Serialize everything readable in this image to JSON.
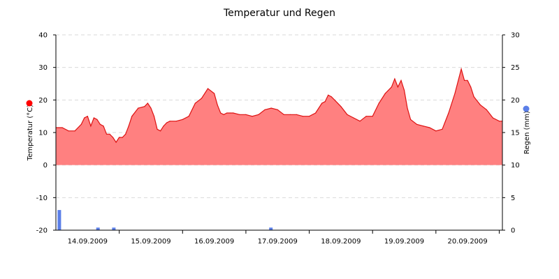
{
  "chart_data": {
    "type": "area",
    "title": "Temperatur und Regen",
    "y_left": {
      "label": "Temperatur (°C)",
      "min": -20,
      "max": 40,
      "ticks": [
        -20,
        -10,
        0,
        10,
        20,
        30,
        40
      ],
      "tick_labels": [
        "-20",
        "-10",
        "0",
        "10",
        "20",
        "30",
        "40"
      ]
    },
    "y_right": {
      "label": "Regen (mm)",
      "min": 0,
      "max": 30,
      "ticks": [
        0,
        5,
        10,
        15,
        20,
        25,
        30
      ],
      "tick_labels": [
        "0",
        "5",
        "10",
        "15",
        "20",
        "25",
        "30"
      ]
    },
    "x_range_days": [
      0,
      7.05
    ],
    "x_tick_labels": [
      "14.09.2009",
      "15.09.2009",
      "16.09.2009",
      "17.09.2009",
      "18.09.2009",
      "19.09.2009",
      "20.09.2009"
    ],
    "grid": true,
    "colors": {
      "temperature_fill": "#ff8080",
      "temperature_line": "#dd1111",
      "rain": "#5b7fe8",
      "marker_temperature": "#ff0000",
      "marker_rain": "#5b7fe8"
    },
    "series": [
      {
        "name": "Temperatur",
        "x_days": [
          0,
          0.1,
          0.2,
          0.3,
          0.4,
          0.45,
          0.5,
          0.55,
          0.6,
          0.65,
          0.7,
          0.75,
          0.8,
          0.85,
          0.9,
          0.95,
          1.0,
          1.05,
          1.1,
          1.15,
          1.2,
          1.3,
          1.4,
          1.45,
          1.5,
          1.55,
          1.6,
          1.65,
          1.7,
          1.75,
          1.8,
          1.9,
          2.0,
          2.1,
          2.2,
          2.3,
          2.4,
          2.5,
          2.55,
          2.6,
          2.65,
          2.7,
          2.75,
          2.8,
          2.9,
          3.0,
          3.1,
          3.2,
          3.3,
          3.4,
          3.5,
          3.6,
          3.7,
          3.8,
          3.9,
          4.0,
          4.1,
          4.2,
          4.25,
          4.3,
          4.35,
          4.4,
          4.5,
          4.6,
          4.7,
          4.8,
          4.9,
          5.0,
          5.1,
          5.2,
          5.3,
          5.35,
          5.4,
          5.45,
          5.5,
          5.55,
          5.6,
          5.7,
          5.8,
          5.9,
          6.0,
          6.1,
          6.2,
          6.3,
          6.4,
          6.45,
          6.5,
          6.55,
          6.6,
          6.7,
          6.8,
          6.9,
          7.0,
          7.05
        ],
        "values": [
          11.5,
          11.5,
          10.5,
          10.5,
          12.5,
          14.5,
          15.0,
          12.0,
          14.5,
          14.0,
          12.5,
          12.0,
          9.5,
          9.5,
          8.5,
          7.0,
          8.5,
          8.5,
          9.5,
          12.0,
          15.0,
          17.5,
          18.0,
          19.0,
          17.5,
          15.0,
          11.0,
          10.5,
          12.0,
          13.0,
          13.5,
          13.5,
          14.0,
          15.0,
          19.0,
          20.5,
          23.5,
          22.0,
          18.5,
          16.0,
          15.5,
          16.0,
          16.0,
          16.0,
          15.5,
          15.5,
          15.0,
          15.5,
          17.0,
          17.5,
          17.0,
          15.5,
          15.5,
          15.5,
          15.0,
          15.0,
          16.0,
          19.0,
          19.5,
          21.5,
          21.0,
          20.0,
          18.0,
          15.5,
          14.5,
          13.5,
          15.0,
          15.0,
          19.0,
          22.0,
          24.0,
          26.5,
          24.0,
          26.0,
          23.0,
          17.5,
          14.0,
          12.5,
          12.0,
          11.5,
          10.5,
          11.0,
          16.0,
          22.0,
          29.5,
          26.0,
          26.0,
          24.0,
          21.0,
          18.5,
          17.0,
          14.5,
          13.5,
          13.5
        ]
      },
      {
        "name": "Regen",
        "x_days": [
          0.06,
          0.67,
          0.92,
          3.4
        ],
        "values": [
          3.1,
          0.4,
          0.4,
          0.4
        ]
      }
    ]
  }
}
